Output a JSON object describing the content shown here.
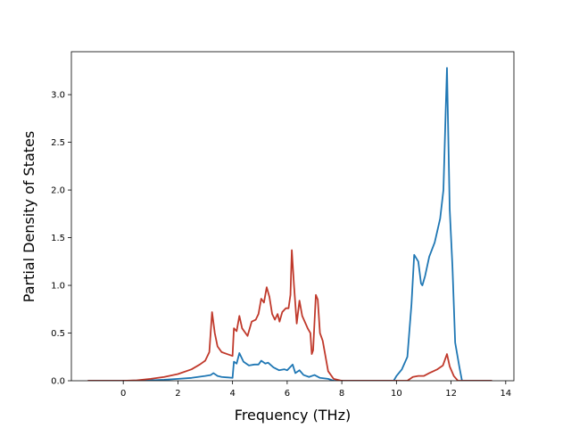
{
  "chart_data": {
    "type": "line",
    "title": "",
    "xlabel": "Frequency (THz)",
    "ylabel": "Partial Density of States",
    "xlim": [
      -1.9,
      14.3
    ],
    "ylim": [
      0,
      3.45
    ],
    "xticks": [
      0,
      2,
      4,
      6,
      8,
      10,
      12,
      14
    ],
    "yticks": [
      0.0,
      0.5,
      1.0,
      1.5,
      2.0,
      2.5,
      3.0
    ],
    "ytick_labels": [
      "0.0",
      "0.5",
      "1.0",
      "1.5",
      "2.0",
      "2.5",
      "3.0"
    ],
    "grid": false,
    "legend": "none",
    "series": [
      {
        "color": "#1f77b4",
        "points": [
          [
            -1.3,
            0
          ],
          [
            0.0,
            0.0
          ],
          [
            1.0,
            0.005
          ],
          [
            1.5,
            0.01
          ],
          [
            2.0,
            0.02
          ],
          [
            2.5,
            0.03
          ],
          [
            3.0,
            0.05
          ],
          [
            3.2,
            0.06
          ],
          [
            3.3,
            0.08
          ],
          [
            3.45,
            0.05
          ],
          [
            3.6,
            0.04
          ],
          [
            4.0,
            0.03
          ],
          [
            4.05,
            0.2
          ],
          [
            4.15,
            0.18
          ],
          [
            4.25,
            0.29
          ],
          [
            4.4,
            0.2
          ],
          [
            4.6,
            0.16
          ],
          [
            4.8,
            0.17
          ],
          [
            4.95,
            0.17
          ],
          [
            5.05,
            0.21
          ],
          [
            5.2,
            0.18
          ],
          [
            5.3,
            0.19
          ],
          [
            5.5,
            0.14
          ],
          [
            5.7,
            0.11
          ],
          [
            5.9,
            0.12
          ],
          [
            6.0,
            0.11
          ],
          [
            6.2,
            0.17
          ],
          [
            6.3,
            0.08
          ],
          [
            6.45,
            0.11
          ],
          [
            6.6,
            0.06
          ],
          [
            6.8,
            0.04
          ],
          [
            7.0,
            0.06
          ],
          [
            7.2,
            0.03
          ],
          [
            7.5,
            0.02
          ],
          [
            7.7,
            0.0
          ],
          [
            9.9,
            0.0
          ],
          [
            10.0,
            0.05
          ],
          [
            10.2,
            0.12
          ],
          [
            10.4,
            0.25
          ],
          [
            10.55,
            0.8
          ],
          [
            10.65,
            1.32
          ],
          [
            10.8,
            1.25
          ],
          [
            10.9,
            1.02
          ],
          [
            10.95,
            1.0
          ],
          [
            11.05,
            1.1
          ],
          [
            11.2,
            1.3
          ],
          [
            11.4,
            1.45
          ],
          [
            11.6,
            1.7
          ],
          [
            11.72,
            2.0
          ],
          [
            11.8,
            2.8
          ],
          [
            11.85,
            3.28
          ],
          [
            11.95,
            1.8
          ],
          [
            12.05,
            1.2
          ],
          [
            12.15,
            0.4
          ],
          [
            12.3,
            0.15
          ],
          [
            12.4,
            0.0
          ],
          [
            13.5,
            0.0
          ]
        ]
      },
      {
        "color": "#c0392b",
        "points": [
          [
            -1.3,
            0
          ],
          [
            0.0,
            0.0
          ],
          [
            0.5,
            0.005
          ],
          [
            1.0,
            0.02
          ],
          [
            1.5,
            0.04
          ],
          [
            2.0,
            0.07
          ],
          [
            2.5,
            0.12
          ],
          [
            2.8,
            0.17
          ],
          [
            3.0,
            0.21
          ],
          [
            3.15,
            0.3
          ],
          [
            3.25,
            0.72
          ],
          [
            3.35,
            0.5
          ],
          [
            3.45,
            0.36
          ],
          [
            3.6,
            0.3
          ],
          [
            3.8,
            0.28
          ],
          [
            4.0,
            0.26
          ],
          [
            4.05,
            0.55
          ],
          [
            4.15,
            0.52
          ],
          [
            4.25,
            0.68
          ],
          [
            4.35,
            0.55
          ],
          [
            4.55,
            0.47
          ],
          [
            4.7,
            0.62
          ],
          [
            4.85,
            0.64
          ],
          [
            4.95,
            0.7
          ],
          [
            5.05,
            0.86
          ],
          [
            5.15,
            0.82
          ],
          [
            5.25,
            0.98
          ],
          [
            5.35,
            0.88
          ],
          [
            5.45,
            0.7
          ],
          [
            5.55,
            0.64
          ],
          [
            5.65,
            0.7
          ],
          [
            5.72,
            0.62
          ],
          [
            5.82,
            0.72
          ],
          [
            5.95,
            0.76
          ],
          [
            6.05,
            0.76
          ],
          [
            6.12,
            0.9
          ],
          [
            6.17,
            1.37
          ],
          [
            6.25,
            1.0
          ],
          [
            6.35,
            0.6
          ],
          [
            6.45,
            0.84
          ],
          [
            6.55,
            0.68
          ],
          [
            6.75,
            0.55
          ],
          [
            6.85,
            0.5
          ],
          [
            6.9,
            0.28
          ],
          [
            6.95,
            0.32
          ],
          [
            7.05,
            0.9
          ],
          [
            7.12,
            0.85
          ],
          [
            7.2,
            0.5
          ],
          [
            7.3,
            0.42
          ],
          [
            7.5,
            0.1
          ],
          [
            7.7,
            0.02
          ],
          [
            8.0,
            0.0
          ],
          [
            10.4,
            0.0
          ],
          [
            10.6,
            0.04
          ],
          [
            10.8,
            0.05
          ],
          [
            11.0,
            0.05
          ],
          [
            11.2,
            0.08
          ],
          [
            11.5,
            0.12
          ],
          [
            11.7,
            0.16
          ],
          [
            11.85,
            0.28
          ],
          [
            11.95,
            0.15
          ],
          [
            12.1,
            0.05
          ],
          [
            12.25,
            0.0
          ],
          [
            13.5,
            0.0
          ]
        ]
      }
    ]
  }
}
